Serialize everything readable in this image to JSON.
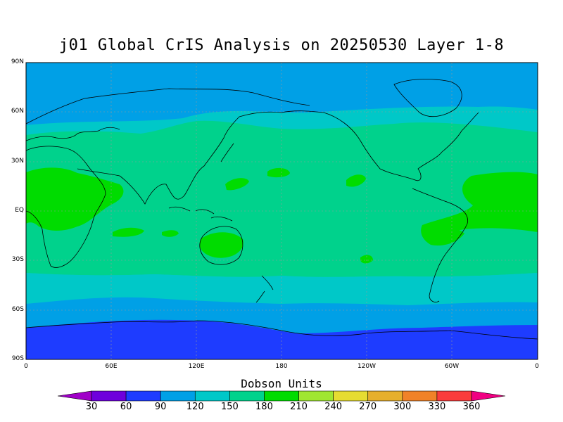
{
  "title": "j01 Global CrIS Analysis on 20250530 Layer 1-8",
  "lat_ticks": [
    "90N",
    "60N",
    "30N",
    "EQ",
    "30S",
    "60S",
    "90S"
  ],
  "lon_ticks": [
    "0",
    "60E",
    "120E",
    "180",
    "120W",
    "60W",
    "0"
  ],
  "colorbar": {
    "title": "Dobson Units",
    "labels": [
      "30",
      "60",
      "90",
      "120",
      "150",
      "180",
      "210",
      "240",
      "270",
      "300",
      "330",
      "360"
    ],
    "colors": [
      "#a000c8",
      "#6e00dc",
      "#1e3cff",
      "#00a0e6",
      "#00c8c8",
      "#00d28c",
      "#00dc00",
      "#a0e632",
      "#e6dc32",
      "#e6af2d",
      "#f08228",
      "#fa3c3c",
      "#f00082"
    ]
  },
  "field_colors": {
    "polar_south": "#1e3cff",
    "band_90": "#00a0e6",
    "band_120": "#00c8c8",
    "band_150": "#00d28c",
    "band_180": "#00dc00"
  }
}
